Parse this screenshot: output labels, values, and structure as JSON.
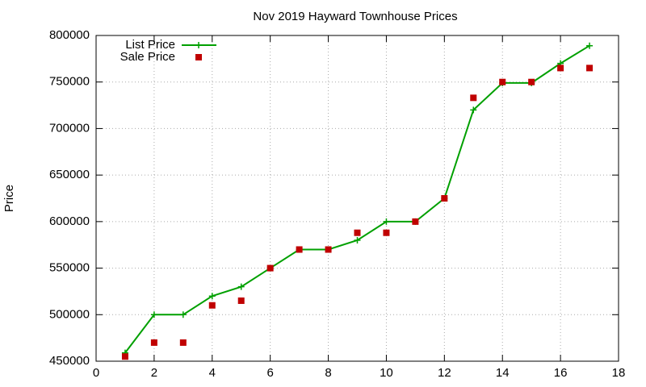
{
  "chart_data": {
    "type": "line",
    "title": "Nov 2019 Hayward Townhouse Prices",
    "ylabel": "Price",
    "x": [
      1,
      2,
      3,
      4,
      5,
      6,
      7,
      8,
      9,
      10,
      11,
      12,
      13,
      14,
      15,
      16,
      17
    ],
    "series": [
      {
        "name": "List Price",
        "color": "#00a000",
        "line": true,
        "marker": "plus",
        "values": [
          459000,
          500000,
          500000,
          520000,
          530000,
          550000,
          570000,
          570000,
          580000,
          600000,
          600000,
          625000,
          720000,
          749000,
          749000,
          770000,
          789000
        ]
      },
      {
        "name": "Sale Price",
        "color": "#c00000",
        "line": false,
        "marker": "square",
        "values": [
          455000,
          470000,
          470000,
          510000,
          515000,
          550000,
          570000,
          570000,
          588000,
          588000,
          600000,
          625000,
          733000,
          750000,
          750000,
          765000,
          765000
        ]
      }
    ],
    "xlim": [
      0,
      18
    ],
    "xticks": [
      0,
      2,
      4,
      6,
      8,
      10,
      12,
      14,
      16,
      18
    ],
    "ylim": [
      450000,
      800000
    ],
    "yticks": [
      450000,
      500000,
      550000,
      600000,
      650000,
      700000,
      750000,
      800000
    ],
    "grid": true,
    "legend": "top-left"
  }
}
